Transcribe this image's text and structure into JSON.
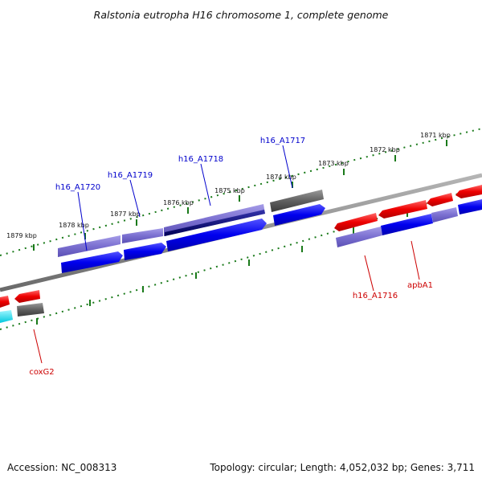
{
  "title": "Ralstonia eutropha H16 chromosome 1, complete genome",
  "footer": {
    "accession": "Accession: NC_008313",
    "summary": "Topology: circular; Length: 4,052,032 bp; Genes: 3,711"
  },
  "colors": {
    "forward_gene": "#0000ee",
    "forward_gene_light": "#7a6fd0",
    "forward_gene_dark": "#000070",
    "reverse_gene": "#ee0000",
    "rna_gene": "#606060",
    "other_gene": "#00e5ee",
    "tick": "#1a7a1a",
    "backbone": "#8a8a8a",
    "forward_label": "#0000cc",
    "reverse_label": "#cc0000"
  },
  "ticks": [
    "1871 kbp",
    "1872 kbp",
    "1873 kbp",
    "1874 kbp",
    "1875 kbp",
    "1876 kbp",
    "1877 kbp",
    "1878 kbp",
    "1879 kbp"
  ],
  "gene_labels": {
    "forward": [
      "h16_A1720",
      "h16_A1719",
      "h16_A1718",
      "h16_A1717"
    ],
    "reverse": [
      "h16_A1716",
      "apbA1",
      "coxG2"
    ]
  }
}
